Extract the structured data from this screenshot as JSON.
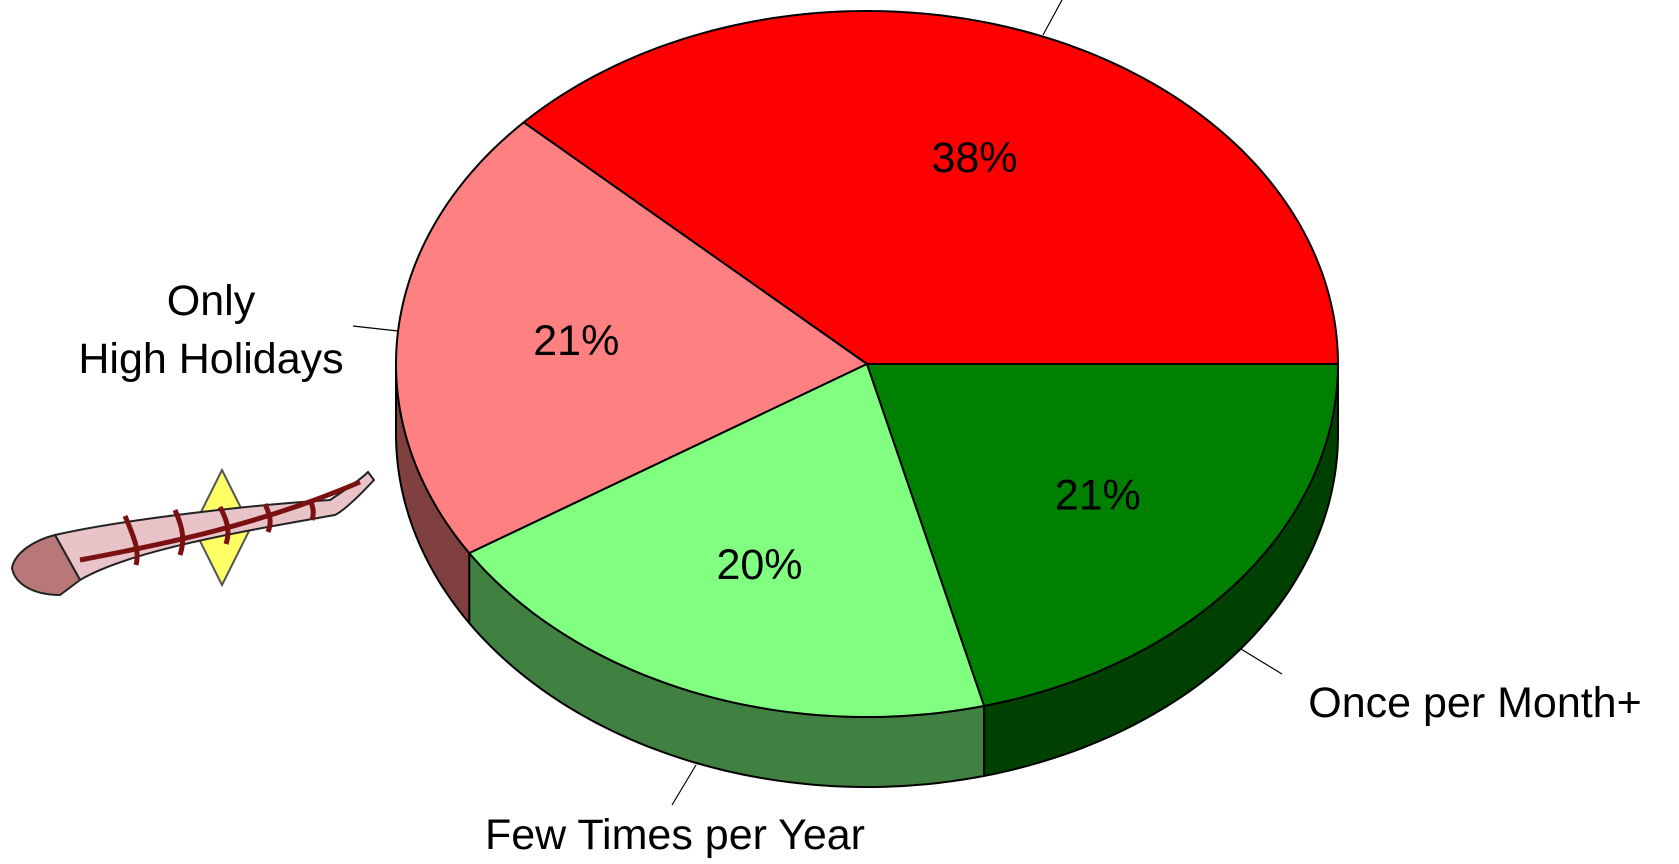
{
  "chart_data": {
    "type": "pie",
    "categories": [
      null,
      "Only\nHigh Holidays",
      "Few Times per Year",
      "Once per Month+"
    ],
    "values": [
      38,
      21,
      20,
      21
    ],
    "value_labels": [
      "38%",
      "21%",
      "20%",
      "21%"
    ],
    "colors": [
      "#ff0000",
      "#ff8080",
      "#80ff80",
      "#008000"
    ],
    "side_colors": [
      "#800000",
      "#804040",
      "#408040",
      "#004000"
    ]
  }
}
